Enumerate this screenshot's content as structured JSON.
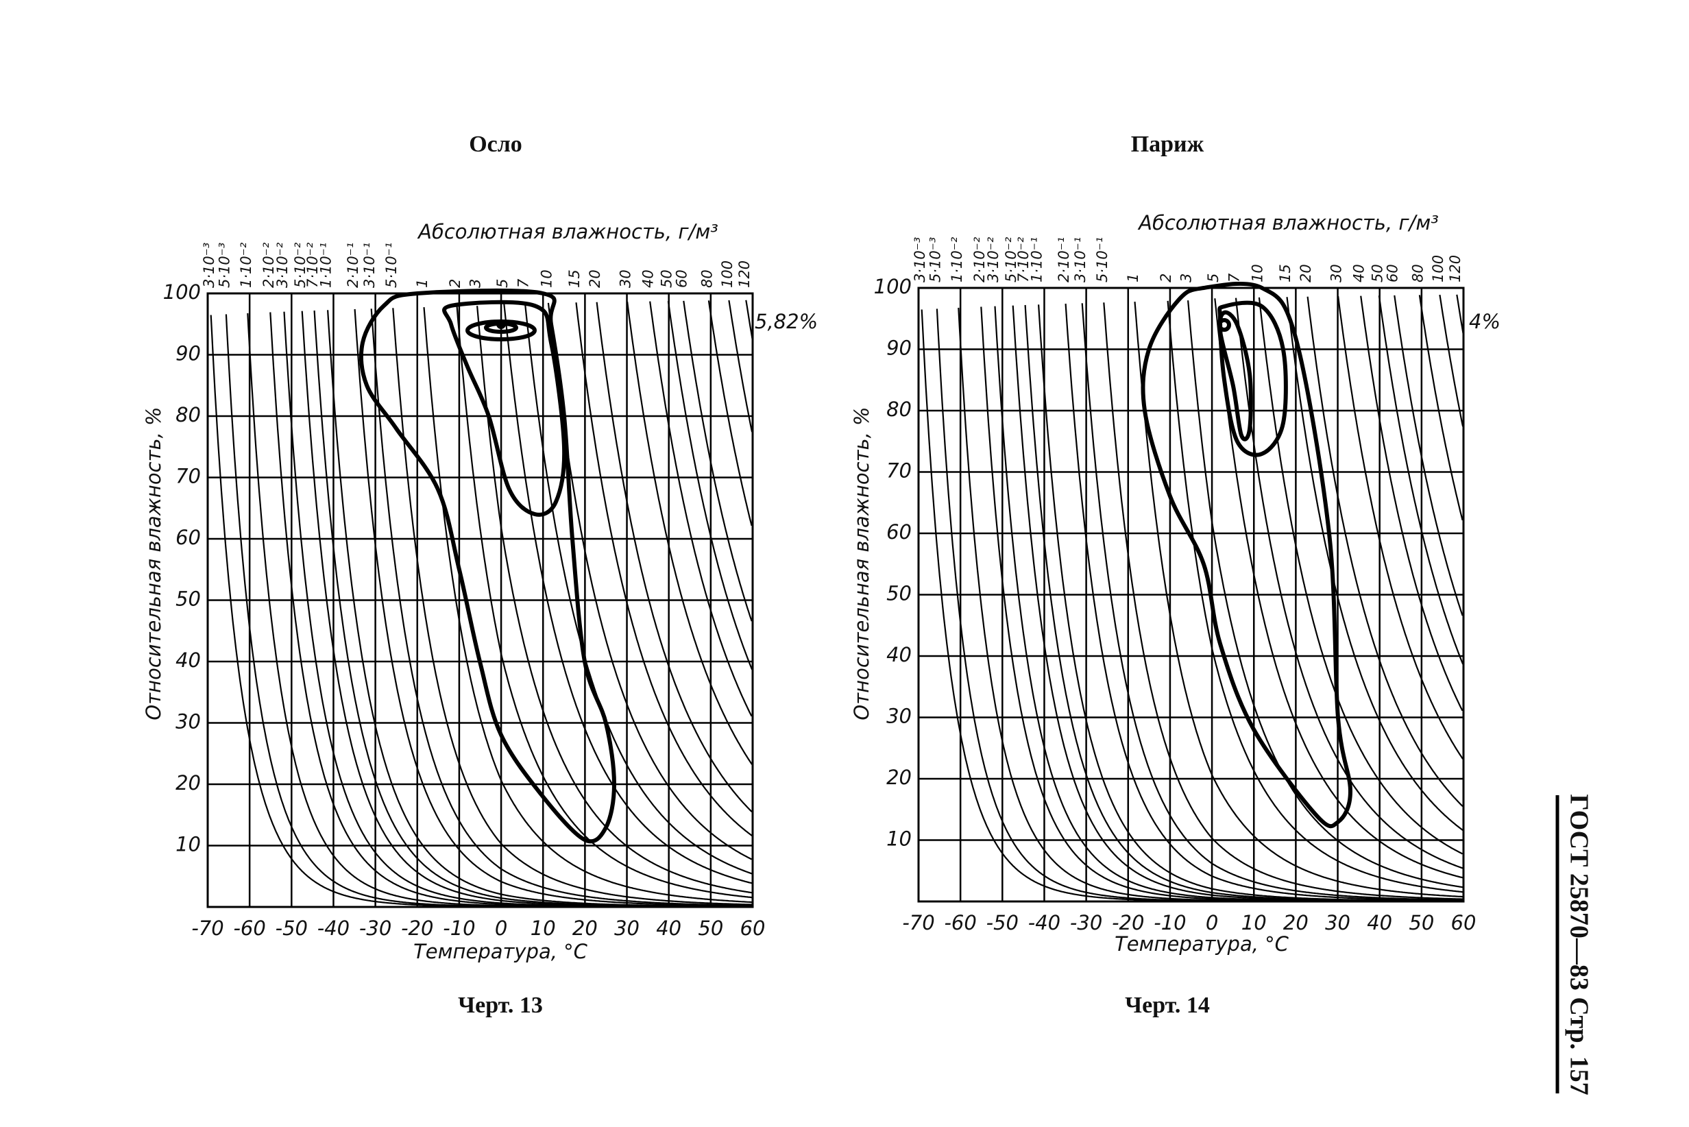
{
  "page": {
    "side_text": "ГОСТ 25870—83 Стр. 157"
  },
  "chart_data": [
    {
      "type": "psychrometric",
      "title": "Осло",
      "top_axis_label": "Абсолютная влажность, г/м³",
      "xlabel": "Температура, °C",
      "ylabel": "Относительная влажность, %",
      "caption": "Черт. 13",
      "annotation": "5,82%",
      "xlim": [
        -70,
        60
      ],
      "ylim": [
        0,
        100
      ],
      "xticks": [
        -70,
        -60,
        -50,
        -40,
        -30,
        -20,
        -10,
        0,
        10,
        20,
        30,
        40,
        50,
        60
      ],
      "yticks": [
        10,
        20,
        30,
        40,
        50,
        60,
        70,
        80,
        90,
        100
      ],
      "isolines": [
        {
          "value": 0.003,
          "label": "3·10⁻³"
        },
        {
          "value": 0.005,
          "label": "5·10⁻³"
        },
        {
          "value": 0.01,
          "label": "1·10⁻²"
        },
        {
          "value": 0.02,
          "label": "2·10⁻²"
        },
        {
          "value": 0.03,
          "label": "3·10⁻²"
        },
        {
          "value": 0.05,
          "label": "5·10⁻²"
        },
        {
          "value": 0.07,
          "label": "7·10⁻²"
        },
        {
          "value": 0.1,
          "label": "1·10⁻¹"
        },
        {
          "value": 0.2,
          "label": "2·10⁻¹"
        },
        {
          "value": 0.3,
          "label": "3·10⁻¹"
        },
        {
          "value": 0.5,
          "label": "5·10⁻¹"
        },
        1,
        2,
        3,
        5,
        7,
        10,
        15,
        20,
        30,
        40,
        50,
        60,
        80,
        100,
        120
      ]
    },
    {
      "type": "psychrometric",
      "title": "Париж",
      "top_axis_label": "Абсолютная влажность, г/м³",
      "xlabel": "Температура, °C",
      "ylabel": "Относительная влажность, %",
      "caption": "Черт. 14",
      "annotation": "4%",
      "xlim": [
        -70,
        60
      ],
      "ylim": [
        0,
        100
      ],
      "xticks": [
        -70,
        -60,
        -50,
        -40,
        -30,
        -20,
        -10,
        0,
        10,
        20,
        30,
        40,
        50,
        60
      ],
      "yticks": [
        10,
        20,
        30,
        40,
        50,
        60,
        70,
        80,
        90,
        100
      ],
      "isolines": [
        {
          "value": 0.003,
          "label": "3·10⁻³"
        },
        {
          "value": 0.005,
          "label": "5·10⁻³"
        },
        {
          "value": 0.01,
          "label": "1·10⁻²"
        },
        {
          "value": 0.02,
          "label": "2·10⁻²"
        },
        {
          "value": 0.03,
          "label": "3·10⁻²"
        },
        {
          "value": 0.05,
          "label": "5·10⁻²"
        },
        {
          "value": 0.07,
          "label": "7·10⁻²"
        },
        {
          "value": 0.1,
          "label": "1·10⁻¹"
        },
        {
          "value": 0.2,
          "label": "2·10⁻¹"
        },
        {
          "value": 0.3,
          "label": "3·10⁻¹"
        },
        {
          "value": 0.5,
          "label": "5·10⁻¹"
        },
        1,
        2,
        3,
        5,
        7,
        10,
        15,
        20,
        30,
        40,
        50,
        60,
        80,
        100,
        120
      ]
    }
  ]
}
